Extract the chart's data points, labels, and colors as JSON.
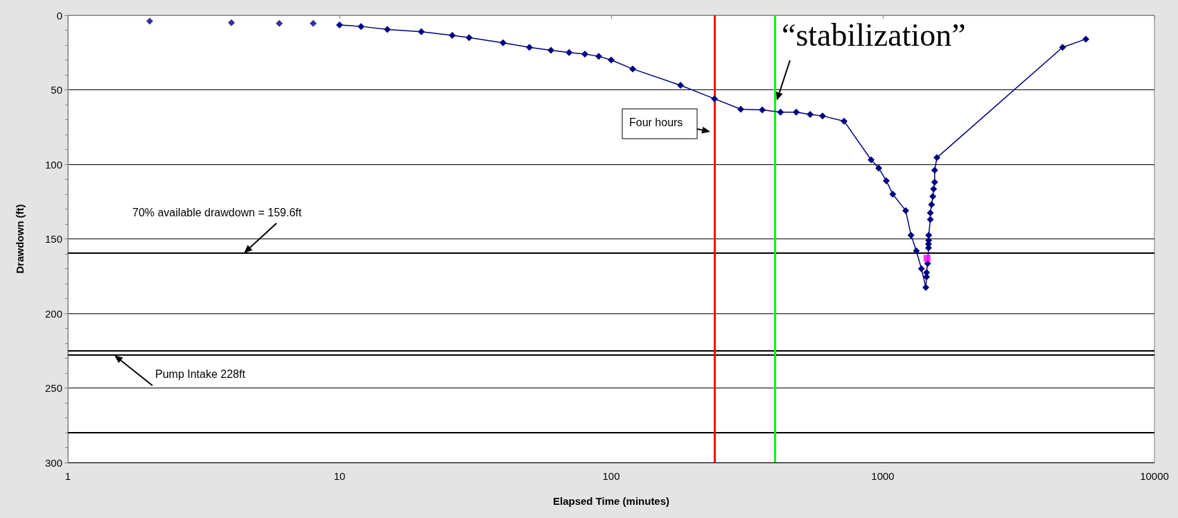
{
  "chart_data": {
    "type": "line",
    "xlabel": "Elapsed Time (minutes)",
    "ylabel": "Drawdown (ft)",
    "log": "x",
    "xlim": [
      1,
      10000
    ],
    "xticks": [
      1,
      10,
      100,
      1000,
      10000
    ],
    "ylim": [
      300,
      0
    ],
    "yticks": [
      0,
      50,
      100,
      150,
      200,
      250,
      300
    ],
    "grid": "y",
    "marker": "diamond",
    "line_style": "solid",
    "series": [
      {
        "type": "scatter",
        "color": "#000080",
        "x": [
          2,
          4,
          6,
          8
        ],
        "values": [
          4,
          5,
          5.5,
          5.5
        ]
      },
      {
        "type": "line",
        "color": "#000080",
        "x": [
          10,
          12,
          15,
          20,
          26,
          30,
          40,
          50,
          60,
          70,
          80,
          90,
          100,
          120,
          180,
          240,
          300,
          360,
          420,
          480,
          540,
          600,
          720,
          906,
          966,
          1030,
          1088,
          1214,
          1270,
          1329,
          1387,
          1440,
          1449,
          1449,
          1462,
          1473,
          1473,
          1475,
          1476,
          1496,
          1496,
          1512,
          1528,
          1538,
          1552,
          1552,
          1582,
          4590,
          5590
        ],
        "values": [
          6.5,
          7.5,
          9.5,
          11,
          13.5,
          15,
          18.5,
          21.5,
          23.5,
          25,
          26,
          27.5,
          30,
          36,
          47,
          56,
          63,
          63.5,
          65,
          65,
          66.5,
          67.5,
          71,
          97,
          102.5,
          111,
          120,
          131,
          147.5,
          158,
          170,
          182.5,
          175.5,
          172.5,
          166.5,
          156,
          153.5,
          151,
          147.5,
          137,
          132.5,
          127,
          121.5,
          116.5,
          112,
          104,
          95.5,
          21.5,
          16
        ]
      },
      {
        "type": "scatter",
        "color": "#ff00ff",
        "marker": "square",
        "x": [
          1455
        ],
        "values": [
          163
        ]
      }
    ],
    "ref_lines": [
      {
        "axis": "y",
        "value": 159.6,
        "label": "70% available drawdown = 159.6ft",
        "color": "#000000"
      },
      {
        "axis": "y",
        "value": 225,
        "color": "#000000"
      },
      {
        "axis": "y",
        "value": 228,
        "label": "Pump Intake 228ft",
        "color": "#000000"
      },
      {
        "axis": "y",
        "value": 280,
        "color": "#000000"
      },
      {
        "axis": "x",
        "value": 240,
        "label": "Four hours",
        "color": "#ff0000"
      },
      {
        "axis": "x",
        "value": 400,
        "label": "“stabilization”",
        "color": "#00ff00"
      }
    ]
  }
}
